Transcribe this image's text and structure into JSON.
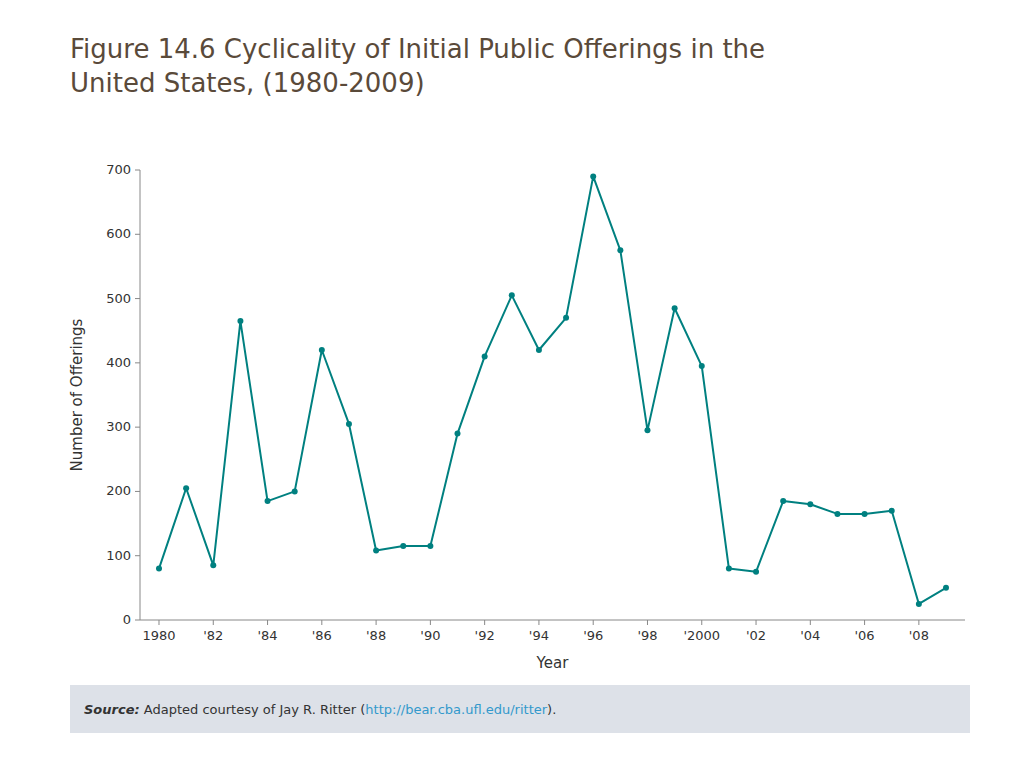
{
  "chart_data": {
    "type": "line",
    "title": "Figure 14.6  Cyclicality of Initial Public Offerings in the",
    "subtitle": "United States, (1980-2009)",
    "xlabel": "Year",
    "ylabel": "Number of Offerings",
    "x": [
      1980,
      1981,
      1982,
      1983,
      1984,
      1985,
      1986,
      1987,
      1988,
      1989,
      1990,
      1991,
      1992,
      1993,
      1994,
      1995,
      1996,
      1997,
      1998,
      1999,
      2000,
      2001,
      2002,
      2003,
      2004,
      2005,
      2006,
      2007,
      2008,
      2009
    ],
    "values": [
      80,
      205,
      85,
      465,
      185,
      200,
      420,
      305,
      108,
      115,
      115,
      290,
      410,
      505,
      420,
      470,
      690,
      575,
      295,
      485,
      395,
      80,
      75,
      185,
      180,
      165,
      165,
      170,
      25,
      50
    ],
    "color": "#008080",
    "marker": "circle",
    "grid": false,
    "xlim": [
      1979.3,
      2009.7
    ],
    "xticks": [
      1980,
      {
        "value": 1982,
        "label": "'82"
      },
      {
        "value": 1984,
        "label": "'84"
      },
      {
        "value": 1986,
        "label": "'86"
      },
      {
        "value": 1988,
        "label": "'88"
      },
      {
        "value": 1990,
        "label": "'90"
      },
      {
        "value": 1992,
        "label": "'92"
      },
      {
        "value": 1994,
        "label": "'94"
      },
      {
        "value": 1996,
        "label": "'96"
      },
      {
        "value": 1998,
        "label": "'98"
      },
      {
        "value": 2000,
        "label": "'2000"
      },
      {
        "value": 2002,
        "label": "'02"
      },
      {
        "value": 2004,
        "label": "'04"
      },
      {
        "value": 2006,
        "label": "'06"
      },
      {
        "value": 2008,
        "label": "'08"
      }
    ],
    "ylim": [
      0,
      700
    ],
    "yticks": [
      0,
      100,
      200,
      300,
      400,
      500,
      600,
      700
    ],
    "annotations": [
      "Source:",
      " Adapted courtesy of Jay R. Ritter (",
      "http://bear.cba.ufl.edu/ritter",
      ")."
    ]
  }
}
